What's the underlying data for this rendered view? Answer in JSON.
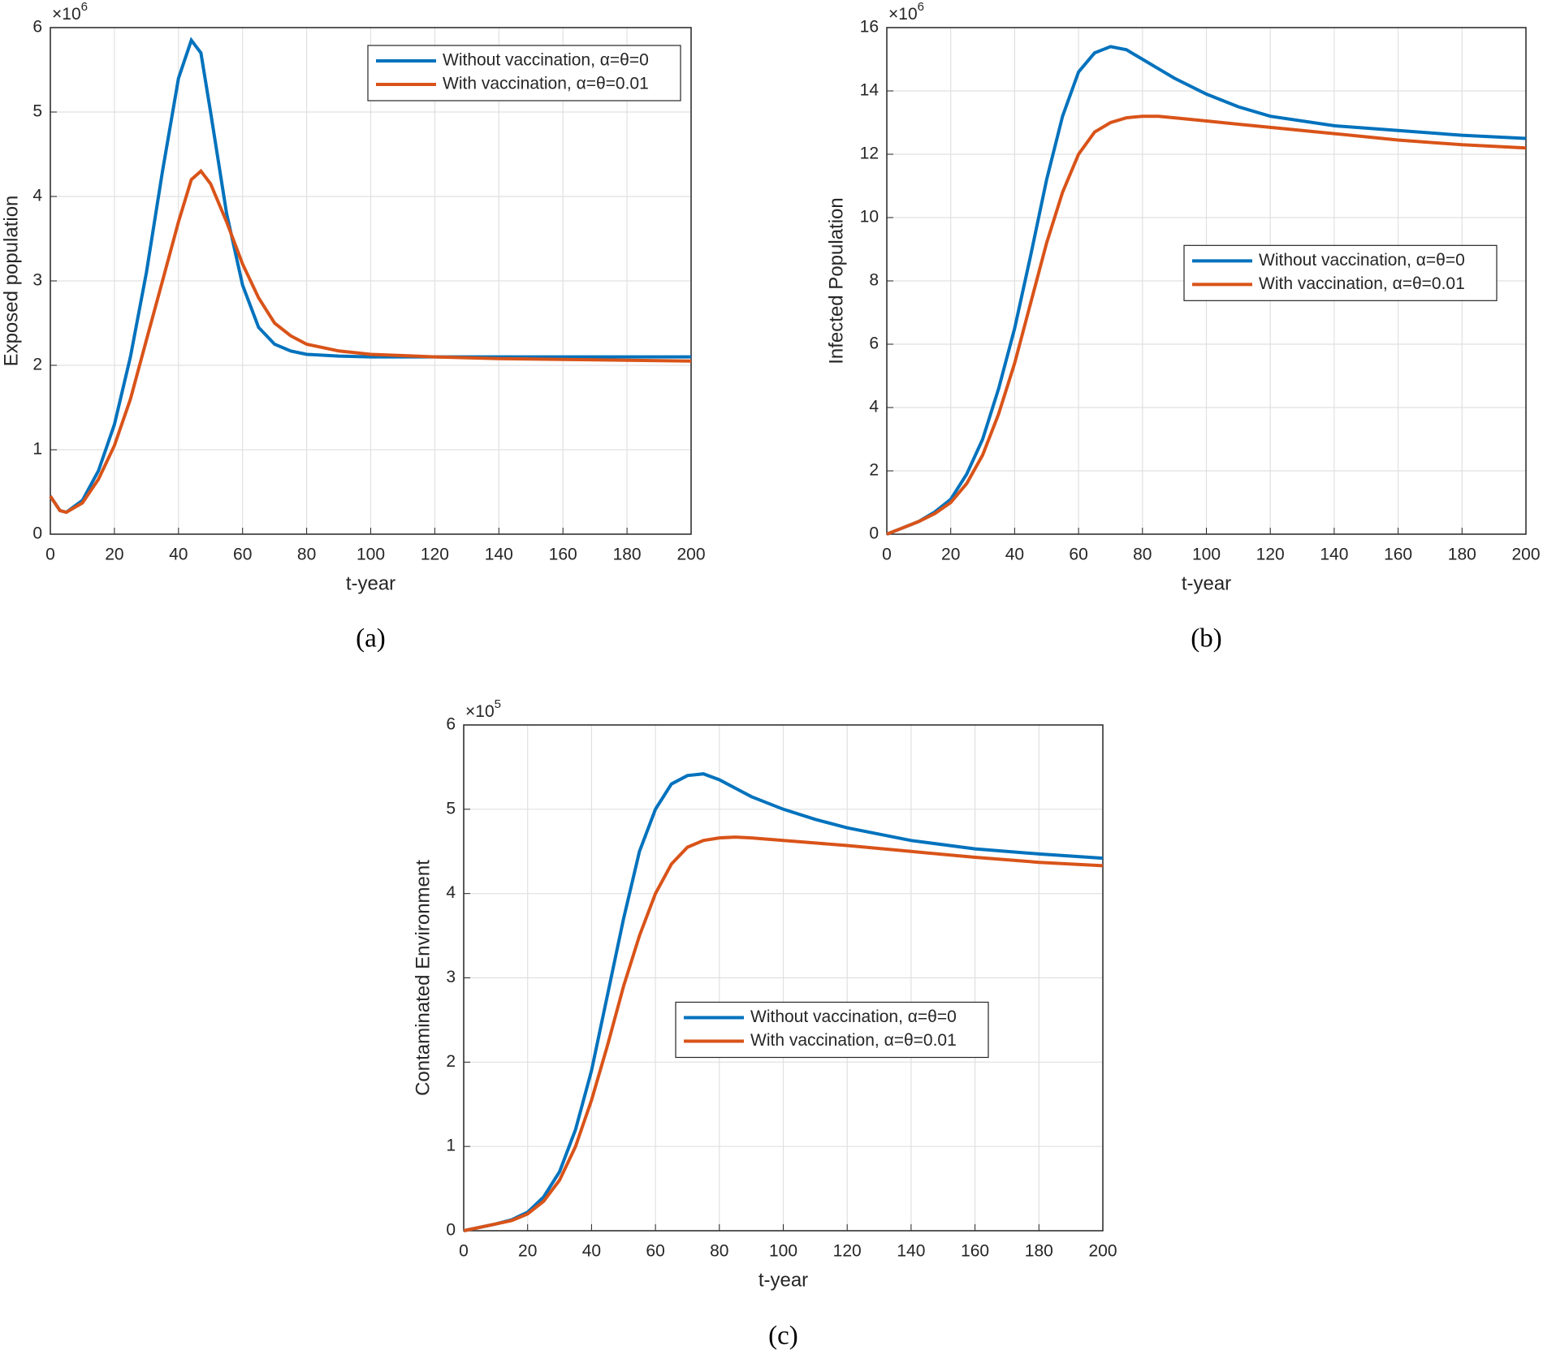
{
  "chart_data": [
    {
      "type": "line",
      "caption": "(a)",
      "xlabel": "t-year",
      "ylabel": "Exposed population",
      "y_scale_base": "×10",
      "y_scale_exponent": "6",
      "legend": "upper right",
      "grid": true,
      "x": [
        0,
        3,
        5,
        10,
        15,
        20,
        25,
        30,
        35,
        40,
        44,
        47,
        50,
        55,
        60,
        65,
        70,
        75,
        80,
        90,
        100,
        120,
        140,
        160,
        180,
        200
      ],
      "series": [
        {
          "name": "Without vaccination, α=θ=0",
          "color": "#0072bd",
          "values": [
            0.45,
            0.28,
            0.26,
            0.4,
            0.75,
            1.3,
            2.1,
            3.1,
            4.3,
            5.4,
            5.85,
            5.7,
            5.0,
            3.8,
            2.95,
            2.45,
            2.25,
            2.17,
            2.13,
            2.11,
            2.1,
            2.1,
            2.1,
            2.1,
            2.1,
            2.1
          ]
        },
        {
          "name": "With vaccination, α=θ=0.01",
          "color": "#d95319",
          "values": [
            0.45,
            0.28,
            0.26,
            0.37,
            0.65,
            1.05,
            1.6,
            2.3,
            3.0,
            3.7,
            4.2,
            4.3,
            4.15,
            3.7,
            3.2,
            2.8,
            2.5,
            2.35,
            2.25,
            2.17,
            2.13,
            2.1,
            2.08,
            2.07,
            2.06,
            2.05
          ]
        }
      ],
      "xlim": [
        0,
        200
      ],
      "xticks": [
        0,
        20,
        40,
        60,
        80,
        100,
        120,
        140,
        160,
        180,
        200
      ],
      "ylim": [
        0,
        6
      ],
      "yticks": [
        0,
        1,
        2,
        3,
        4,
        5,
        6
      ]
    },
    {
      "type": "line",
      "caption": "(b)",
      "xlabel": "t-year",
      "ylabel": "Infected Population",
      "y_scale_base": "×10",
      "y_scale_exponent": "6",
      "legend": "right",
      "grid": true,
      "x": [
        0,
        5,
        10,
        15,
        20,
        25,
        30,
        35,
        40,
        45,
        50,
        55,
        60,
        65,
        70,
        75,
        80,
        85,
        90,
        100,
        110,
        120,
        140,
        160,
        180,
        200
      ],
      "series": [
        {
          "name": "Without vaccination, α=θ=0",
          "color": "#0072bd",
          "values": [
            0,
            0.2,
            0.4,
            0.7,
            1.1,
            1.9,
            3.0,
            4.6,
            6.5,
            8.8,
            11.2,
            13.2,
            14.6,
            15.2,
            15.4,
            15.3,
            15.0,
            14.7,
            14.4,
            13.9,
            13.5,
            13.2,
            12.9,
            12.75,
            12.6,
            12.5
          ]
        },
        {
          "name": "With vaccination, α=θ=0.01",
          "color": "#d95319",
          "values": [
            0,
            0.2,
            0.4,
            0.65,
            1.0,
            1.6,
            2.5,
            3.8,
            5.4,
            7.3,
            9.2,
            10.8,
            12.0,
            12.7,
            13.0,
            13.15,
            13.2,
            13.2,
            13.15,
            13.05,
            12.95,
            12.85,
            12.65,
            12.45,
            12.3,
            12.2
          ]
        }
      ],
      "xlim": [
        0,
        200
      ],
      "xticks": [
        0,
        20,
        40,
        60,
        80,
        100,
        120,
        140,
        160,
        180,
        200
      ],
      "ylim": [
        0,
        16
      ],
      "yticks": [
        0,
        2,
        4,
        6,
        8,
        10,
        12,
        14,
        16
      ]
    },
    {
      "type": "line",
      "caption": "(c)",
      "xlabel": "t-year",
      "ylabel": "Contaminated Environment",
      "y_scale_base": "×10",
      "y_scale_exponent": "5",
      "legend": "center",
      "grid": true,
      "x": [
        0,
        10,
        15,
        20,
        25,
        30,
        35,
        40,
        45,
        50,
        55,
        60,
        65,
        70,
        75,
        80,
        85,
        90,
        100,
        110,
        120,
        140,
        160,
        180,
        200
      ],
      "series": [
        {
          "name": "Without vaccination, α=θ=0",
          "color": "#0072bd",
          "values": [
            0,
            0.08,
            0.13,
            0.22,
            0.4,
            0.7,
            1.2,
            1.9,
            2.8,
            3.7,
            4.5,
            5.0,
            5.3,
            5.4,
            5.42,
            5.35,
            5.25,
            5.15,
            5.0,
            4.88,
            4.78,
            4.63,
            4.53,
            4.47,
            4.42
          ]
        },
        {
          "name": "With vaccination, α=θ=0.01",
          "color": "#d95319",
          "values": [
            0,
            0.08,
            0.12,
            0.2,
            0.35,
            0.6,
            1.0,
            1.55,
            2.2,
            2.9,
            3.5,
            4.0,
            4.35,
            4.55,
            4.63,
            4.66,
            4.67,
            4.66,
            4.63,
            4.6,
            4.57,
            4.5,
            4.43,
            4.37,
            4.33
          ]
        }
      ],
      "xlim": [
        0,
        200
      ],
      "xticks": [
        0,
        20,
        40,
        60,
        80,
        100,
        120,
        140,
        160,
        180,
        200
      ],
      "ylim": [
        0,
        6
      ],
      "yticks": [
        0,
        1,
        2,
        3,
        4,
        5,
        6
      ]
    }
  ]
}
